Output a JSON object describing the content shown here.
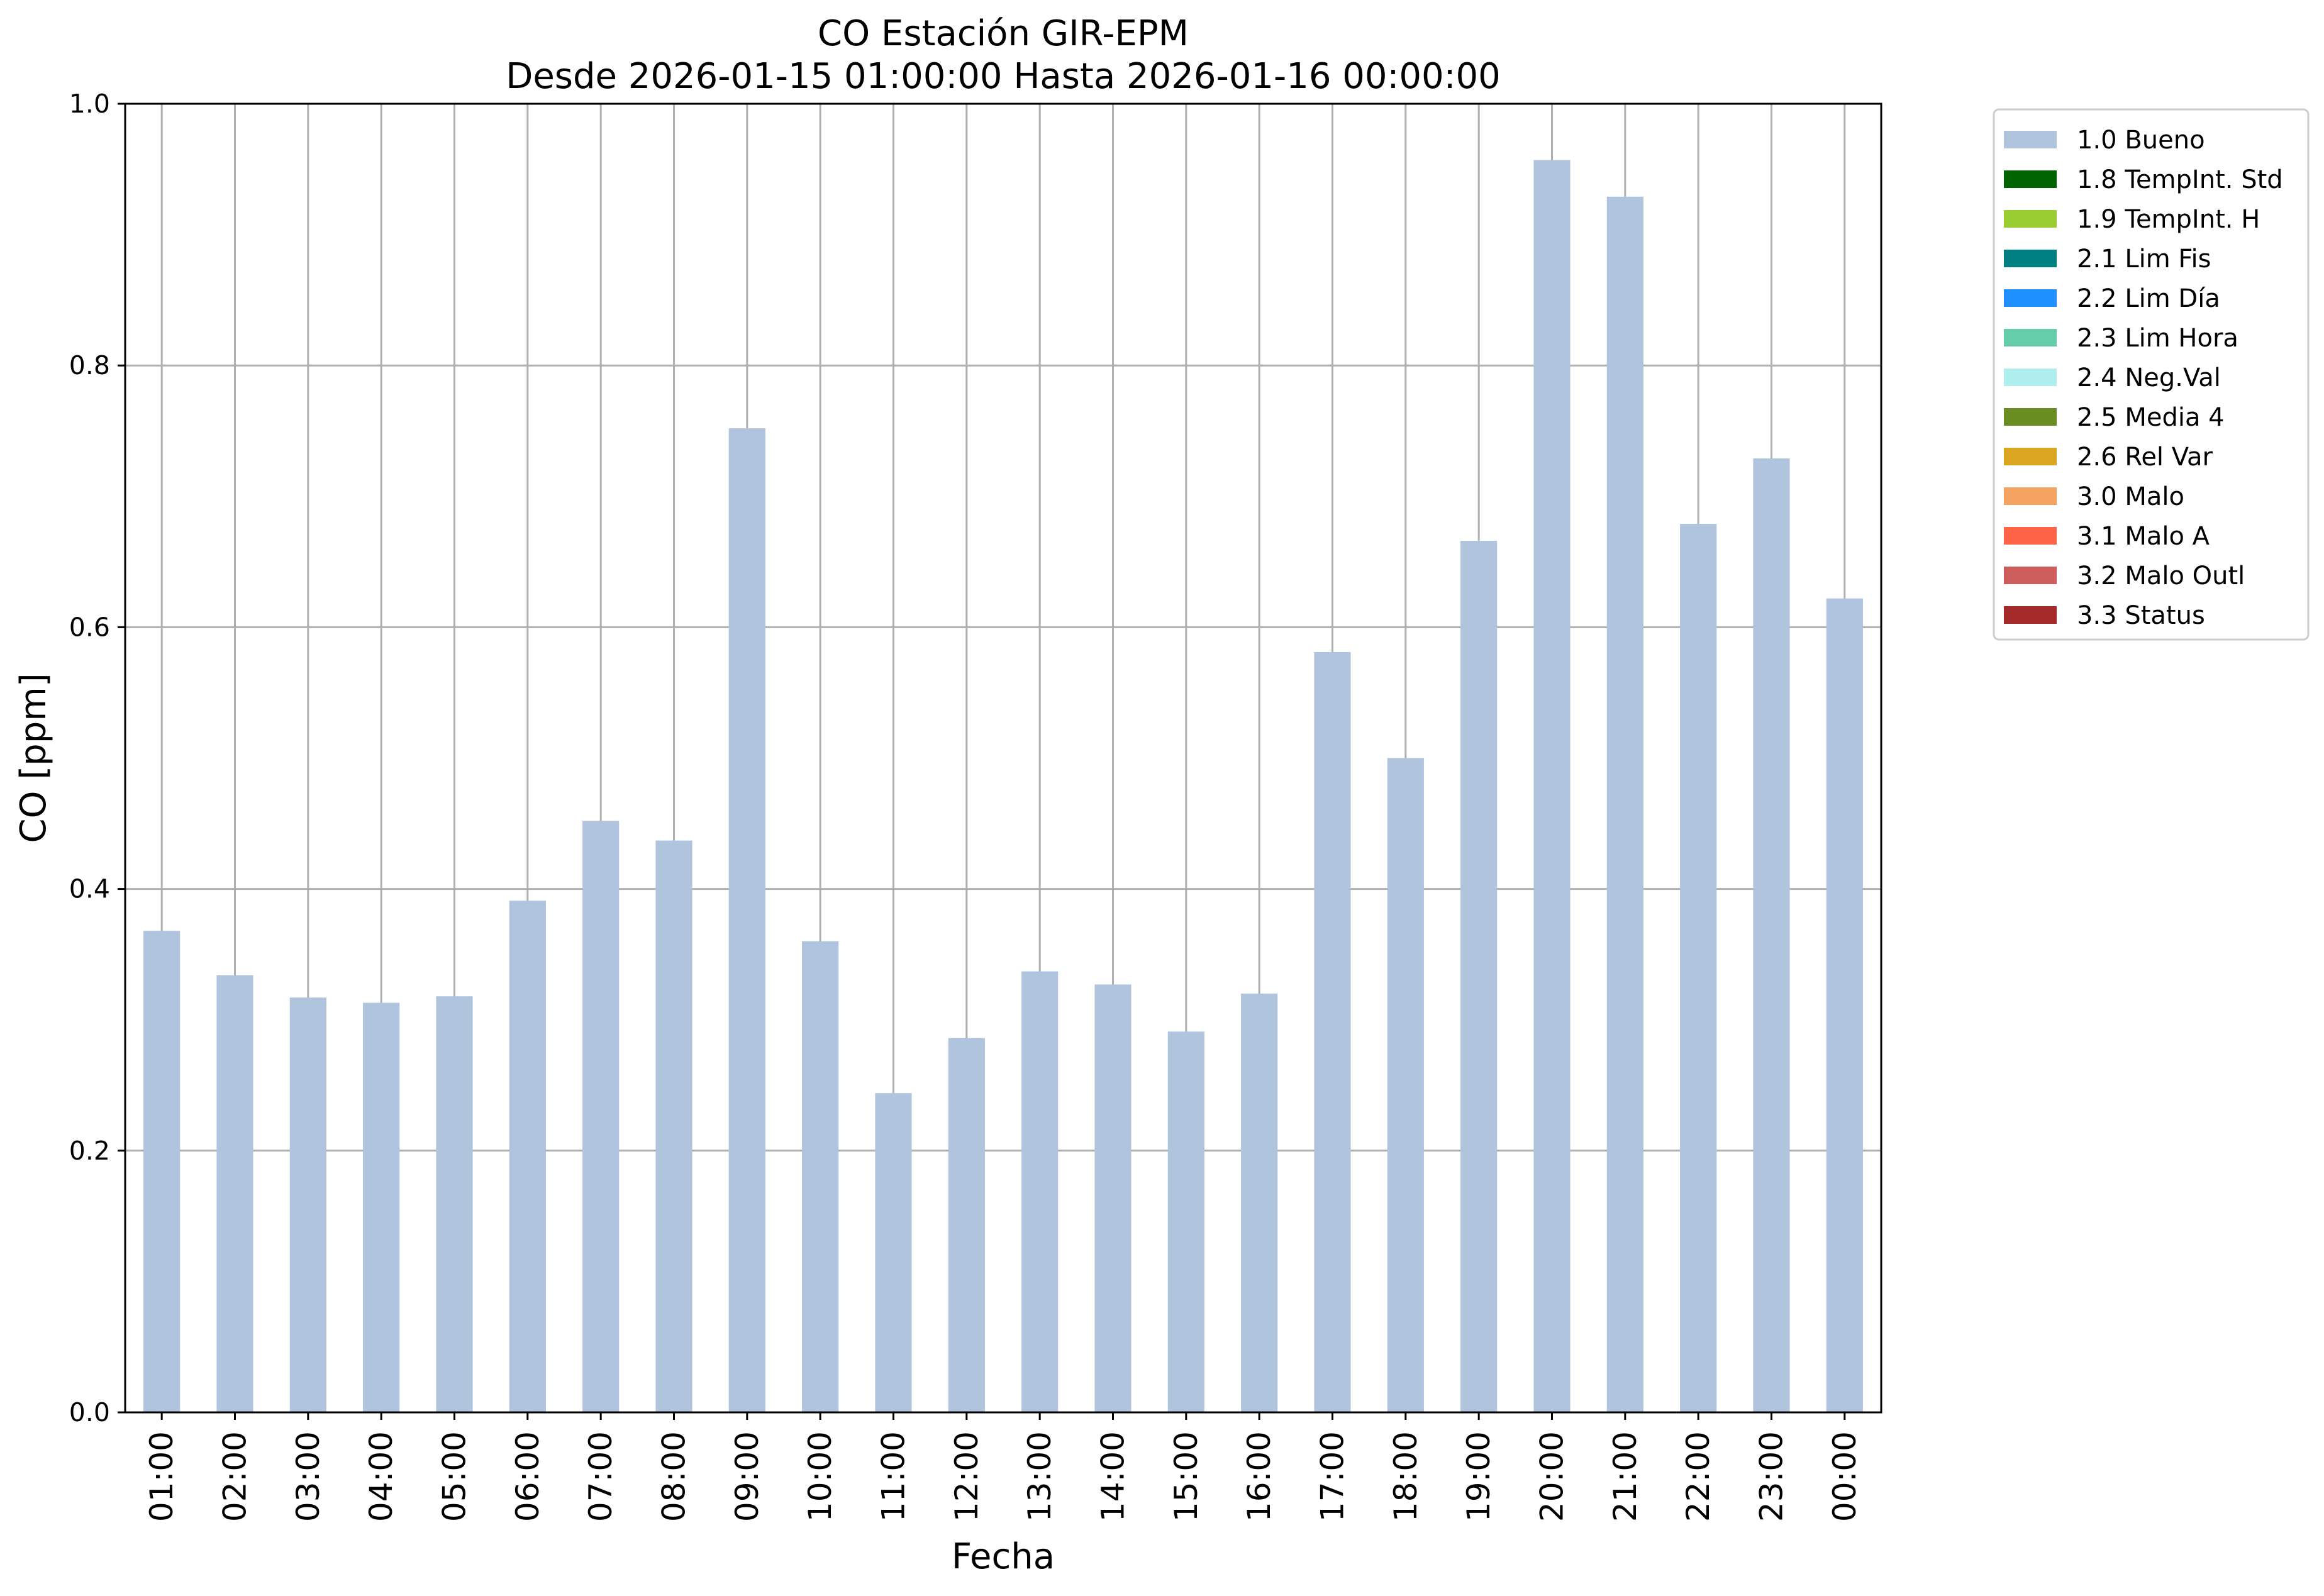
{
  "chart_data": {
    "type": "bar",
    "title": "CO Estación GIR-EPM",
    "subtitle": "Desde 2026-01-15 01:00:00 Hasta 2026-01-16 00:00:00",
    "xlabel": "Fecha",
    "ylabel": "CO [ppm]",
    "ylim": [
      0.0,
      1.0
    ],
    "yticks": [
      "0.0",
      "0.2",
      "0.4",
      "0.6",
      "0.8",
      "1.0"
    ],
    "grid": true,
    "legend_position": "outside-top-right",
    "categories": [
      "01:00",
      "02:00",
      "03:00",
      "04:00",
      "05:00",
      "06:00",
      "07:00",
      "08:00",
      "09:00",
      "10:00",
      "11:00",
      "12:00",
      "13:00",
      "14:00",
      "15:00",
      "16:00",
      "17:00",
      "18:00",
      "19:00",
      "20:00",
      "21:00",
      "22:00",
      "23:00",
      "00:00"
    ],
    "series": [
      {
        "name": "1.0 Bueno",
        "color": "#b0c4de",
        "values": [
          0.368,
          0.334,
          0.317,
          0.313,
          0.318,
          0.391,
          0.452,
          0.437,
          0.752,
          0.36,
          0.244,
          0.286,
          0.337,
          0.327,
          0.291,
          0.32,
          0.581,
          0.5,
          0.666,
          0.957,
          0.929,
          0.679,
          0.729,
          0.622
        ]
      }
    ],
    "legend": [
      {
        "label": "1.0 Bueno",
        "color": "#b0c4de"
      },
      {
        "label": "1.8 TempInt. Std",
        "color": "#006400"
      },
      {
        "label": "1.9 TempInt. H",
        "color": "#9acd32"
      },
      {
        "label": "2.1 Lim Fis",
        "color": "#008080"
      },
      {
        "label": "2.2 Lim Día",
        "color": "#1e90ff"
      },
      {
        "label": "2.3 Lim Hora",
        "color": "#66cdaa"
      },
      {
        "label": "2.4 Neg.Val",
        "color": "#afeeee"
      },
      {
        "label": "2.5 Media 4",
        "color": "#6b8e23"
      },
      {
        "label": "2.6 Rel Var",
        "color": "#daa520"
      },
      {
        "label": "3.0 Malo",
        "color": "#f4a460"
      },
      {
        "label": "3.1 Malo A",
        "color": "#ff6347"
      },
      {
        "label": "3.2 Malo Outl",
        "color": "#cd5c5c"
      },
      {
        "label": "3.3 Status",
        "color": "#a52a2a"
      }
    ]
  }
}
